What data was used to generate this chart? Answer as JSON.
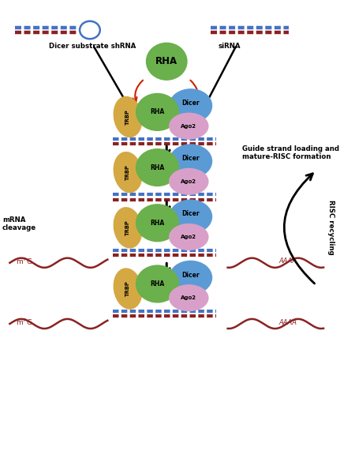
{
  "fig_width": 4.5,
  "fig_height": 5.71,
  "dpi": 100,
  "bg_color": "#ffffff",
  "xlim": [
    0,
    9
  ],
  "ylim": [
    0,
    11.42
  ],
  "colors": {
    "trbp": "#d4a843",
    "rha_green": "#6ab04c",
    "dicer": "#5b9bd5",
    "ago2": "#d8a0c8",
    "rna_red": "#8B2222",
    "rna_blue": "#4472C4",
    "arrow_black": "#111111",
    "arrow_red": "#cc2200"
  },
  "labels": {
    "shrna": "Dicer substrate shRNA",
    "sirna": "siRNA",
    "rha": "RHA",
    "trbp": "TRBP",
    "rha_label": "RHA",
    "dicer": "Dicer",
    "ago2": "Ago2",
    "guide_strand": "Guide strand loading and\nmature-RISC formation",
    "mrna_cleavage": "mRNA\ncleavage",
    "risc_recycling": "RISC recycling",
    "m7g": "m$^7$G",
    "aaaa": "AAAA"
  }
}
